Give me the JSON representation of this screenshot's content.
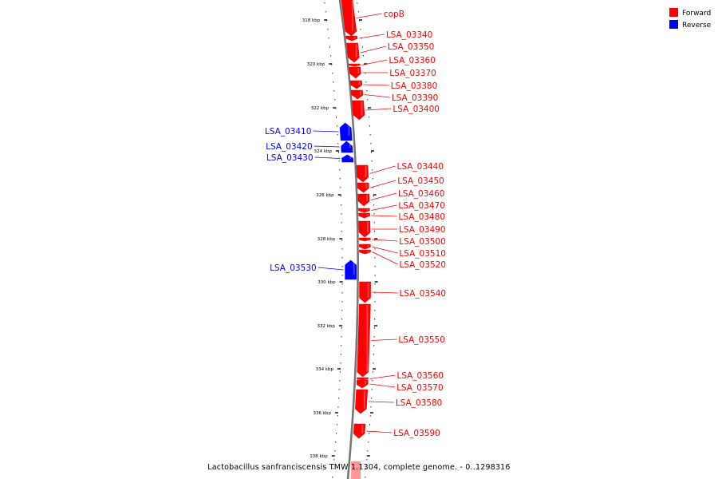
{
  "legend": {
    "forward": {
      "label": "Forward",
      "color": "#ff0000"
    },
    "reverse": {
      "label": "Reverse",
      "color": "#0000ff"
    }
  },
  "caption": "Lactobacillus sanfranciscensis TMW 1.1304, complete genome. - 0..1298316",
  "ticks": [
    "318 kbp",
    "320 kbp",
    "322 kbp",
    "324 kbp",
    "326 kbp",
    "328 kbp",
    "330 kbp",
    "332 kbp",
    "334 kbp",
    "336 kbp",
    "338 kbp"
  ],
  "genes": [
    {
      "name": "copB",
      "strand": "forward"
    },
    {
      "name": "LSA_03340",
      "strand": "forward"
    },
    {
      "name": "LSA_03350",
      "strand": "forward"
    },
    {
      "name": "LSA_03360",
      "strand": "forward"
    },
    {
      "name": "LSA_03370",
      "strand": "forward"
    },
    {
      "name": "LSA_03380",
      "strand": "forward"
    },
    {
      "name": "LSA_03390",
      "strand": "forward"
    },
    {
      "name": "LSA_03400",
      "strand": "forward"
    },
    {
      "name": "LSA_03410",
      "strand": "reverse"
    },
    {
      "name": "LSA_03420",
      "strand": "reverse"
    },
    {
      "name": "LSA_03430",
      "strand": "reverse"
    },
    {
      "name": "LSA_03440",
      "strand": "forward"
    },
    {
      "name": "LSA_03450",
      "strand": "forward"
    },
    {
      "name": "LSA_03460",
      "strand": "forward"
    },
    {
      "name": "LSA_03470",
      "strand": "forward"
    },
    {
      "name": "LSA_03480",
      "strand": "forward"
    },
    {
      "name": "LSA_03490",
      "strand": "forward"
    },
    {
      "name": "LSA_03500",
      "strand": "forward"
    },
    {
      "name": "LSA_03510",
      "strand": "forward"
    },
    {
      "name": "LSA_03520",
      "strand": "forward"
    },
    {
      "name": "LSA_03530",
      "strand": "reverse"
    },
    {
      "name": "LSA_03540",
      "strand": "forward"
    },
    {
      "name": "LSA_03550",
      "strand": "forward"
    },
    {
      "name": "LSA_03560",
      "strand": "forward"
    },
    {
      "name": "LSA_03570",
      "strand": "forward"
    },
    {
      "name": "LSA_03580",
      "strand": "forward"
    },
    {
      "name": "LSA_03590",
      "strand": "forward"
    }
  ]
}
